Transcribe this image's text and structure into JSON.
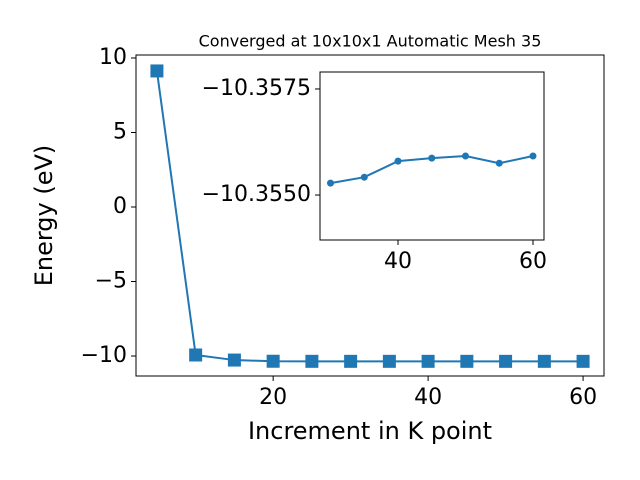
{
  "chart_data": [
    {
      "type": "line",
      "title": "Converged at 10x10x1 Automatic Mesh 35",
      "x_label": "Increment in K point",
      "y_label": "Energy (eV)",
      "x": [
        5,
        10,
        15,
        20,
        25,
        30,
        35,
        40,
        45,
        50,
        55,
        60
      ],
      "series": [
        {
          "name": "Energy",
          "color": "#1f77b4",
          "marker": "square",
          "values": [
            9.13,
            -9.93,
            -10.27,
            -10.35,
            -10.355,
            -10.3553,
            -10.3554,
            -10.3558,
            -10.3559,
            -10.3559,
            -10.3558,
            -10.3559
          ]
        }
      ],
      "xlim": [
        2.3,
        62.7
      ],
      "ylim": [
        -11.34,
        10.2
      ],
      "xticks": [
        20,
        40,
        60
      ],
      "yticks": [
        {
          "value": -10,
          "label": "−10"
        },
        {
          "value": -5,
          "label": "−5"
        },
        0,
        5,
        10
      ]
    },
    {
      "type": "line",
      "x": [
        30,
        35,
        40,
        45,
        50,
        55,
        60
      ],
      "series": [
        {
          "name": "Energy",
          "color": "#1f77b4",
          "marker": "circle",
          "values": [
            -10.35528,
            -10.35542,
            -10.3558,
            -10.35587,
            -10.35592,
            -10.35575,
            -10.35592
          ]
        }
      ],
      "xlim": [
        28.44,
        61.63
      ],
      "ylim": [
        -10.35394,
        -10.3579
      ],
      "xticks": [
        40,
        60
      ],
      "yticks": [
        {
          "value": -10.3575,
          "label": "−10.3575"
        },
        {
          "value": -10.355,
          "label": "−10.3550"
        }
      ]
    }
  ]
}
